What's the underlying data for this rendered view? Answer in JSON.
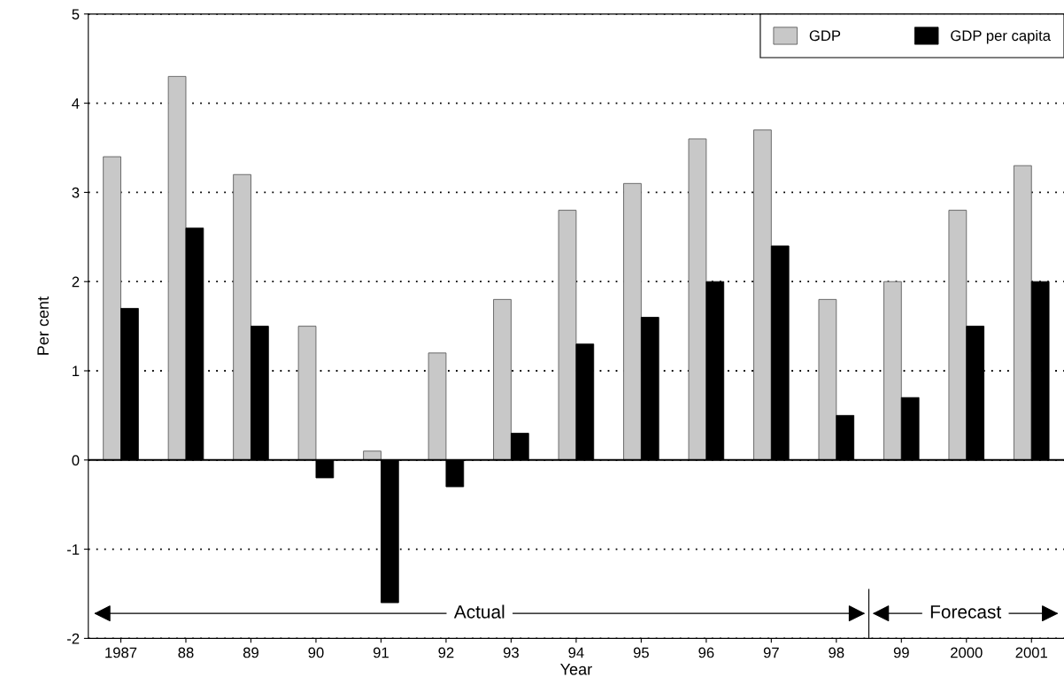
{
  "chart_data": {
    "type": "bar",
    "categories": [
      "1987",
      "88",
      "89",
      "90",
      "91",
      "92",
      "93",
      "94",
      "95",
      "96",
      "97",
      "98",
      "99",
      "2000",
      "2001"
    ],
    "series": [
      {
        "name": "GDP",
        "color": "#c8c8c8",
        "values": [
          3.4,
          4.3,
          3.2,
          1.5,
          0.1,
          1.2,
          1.8,
          2.8,
          3.1,
          3.6,
          3.7,
          1.8,
          2.0,
          2.8,
          3.3
        ]
      },
      {
        "name": "GDP per capita",
        "color": "#000000",
        "values": [
          1.7,
          2.6,
          1.5,
          -0.2,
          -1.6,
          -0.3,
          0.3,
          1.3,
          1.6,
          2.0,
          2.4,
          0.5,
          0.7,
          1.5,
          2.0
        ]
      }
    ],
    "xlabel": "Year",
    "ylabel": "Per cent",
    "ylim": [
      -2,
      5
    ],
    "yticks": [
      -2,
      -1,
      0,
      1,
      2,
      3,
      4,
      5
    ],
    "grid": "y",
    "legend": "top right",
    "annotations": [
      "Actual",
      "Forecast"
    ]
  }
}
